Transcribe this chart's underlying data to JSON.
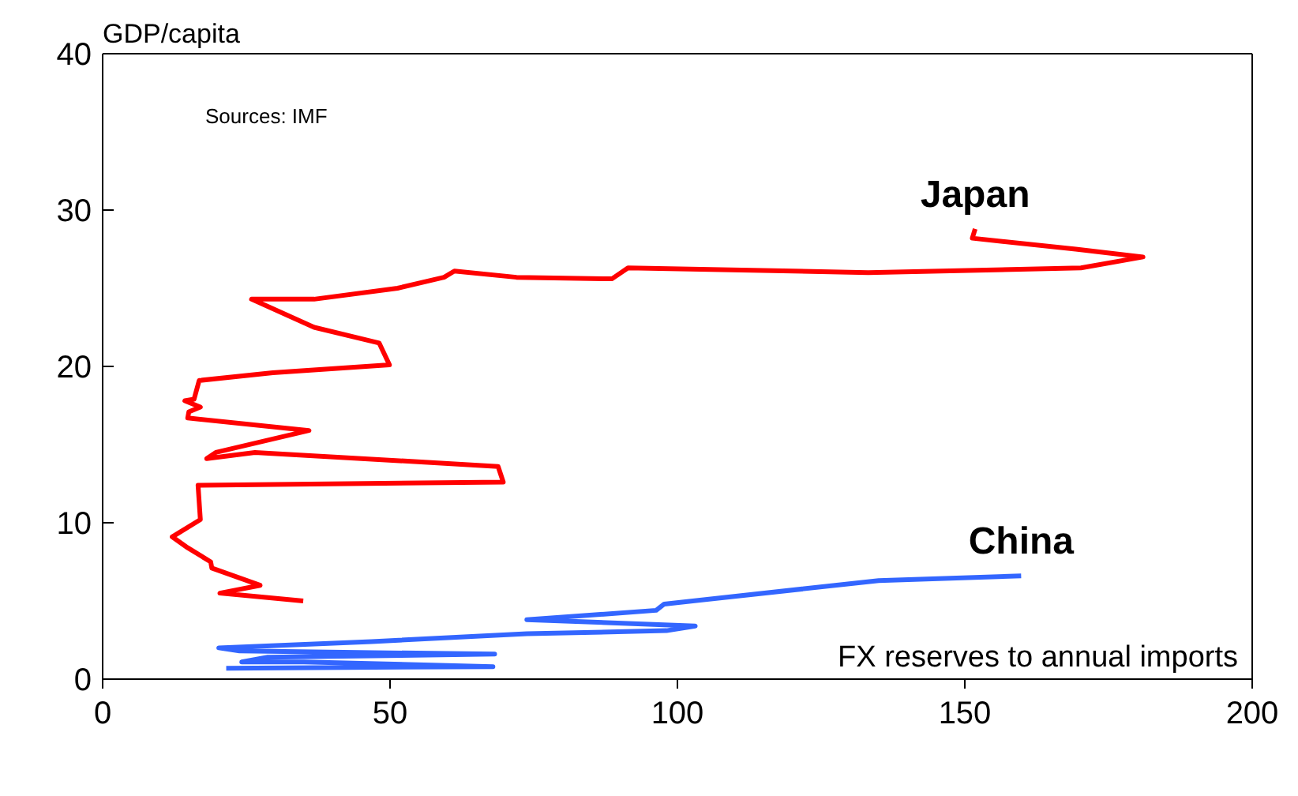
{
  "chart_data": {
    "type": "line",
    "xlabel": "FX reserves to annual imports",
    "ylabel": "GDP/capita",
    "annotations": [
      "Sources: IMF"
    ],
    "xlim": [
      0,
      200
    ],
    "xticks": [
      0,
      50,
      100,
      150,
      200
    ],
    "ylim": [
      0,
      40
    ],
    "yticks": [
      0,
      10,
      20,
      30,
      40
    ],
    "grid": false,
    "legend": false,
    "marker": "none",
    "line_style": "solid",
    "series": [
      {
        "name": "Japan",
        "color": "#ff0000",
        "x": [
          34.9,
          20.4,
          27.4,
          19.0,
          18.8,
          14.8,
          12.1,
          17.0,
          16.6,
          69.7,
          68.8,
          26.5,
          18.1,
          19.7,
          35.9,
          14.8,
          15.0,
          17.0,
          14.3,
          15.9,
          16.8,
          29.6,
          49.9,
          48.1,
          36.8,
          25.9,
          36.8,
          51.3,
          59.4,
          61.2,
          72.0,
          88.6,
          91.4,
          133.2,
          170.2,
          181.0,
          169.3,
          151.3,
          151.8
        ],
        "values": [
          5.0,
          5.5,
          6.0,
          7.1,
          7.5,
          8.4,
          9.1,
          10.2,
          12.4,
          12.6,
          13.6,
          14.5,
          14.1,
          14.5,
          15.9,
          16.7,
          17.1,
          17.4,
          17.8,
          17.9,
          19.1,
          19.6,
          20.1,
          21.5,
          22.5,
          24.3,
          24.3,
          25.0,
          25.7,
          26.1,
          25.7,
          25.6,
          26.3,
          26.0,
          26.3,
          27.0,
          27.5,
          28.2,
          28.8
        ]
      },
      {
        "name": "China",
        "color": "#3366ff",
        "x": [
          21.5,
          67.9,
          35.0,
          24.2,
          28.7,
          68.2,
          23.8,
          20.2,
          46.8,
          73.8,
          98.1,
          103.1,
          73.8,
          96.3,
          97.7,
          135.0,
          159.8
        ],
        "values": [
          0.7,
          0.8,
          1.1,
          1.1,
          1.4,
          1.6,
          1.8,
          2.0,
          2.4,
          2.9,
          3.1,
          3.4,
          3.8,
          4.4,
          4.8,
          6.3,
          6.6
        ]
      }
    ]
  }
}
